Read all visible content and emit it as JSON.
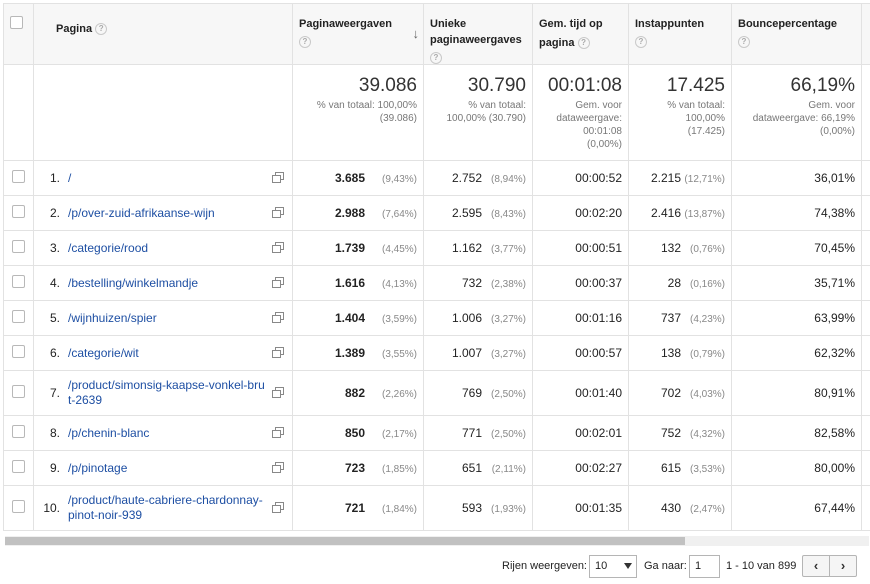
{
  "headers": {
    "page": "Pagina",
    "pageviews": "Paginaweergaven",
    "unique_pageviews_1": "Unieke",
    "unique_pageviews_2": "paginaweergaves",
    "avg_time_1": "Gem. tijd op",
    "avg_time_2": "pagina",
    "entrances": "Instappunten",
    "bounce": "Bouncepercentage",
    "help_glyph": "?"
  },
  "totals": {
    "pageviews": "39.086",
    "pageviews_sub1": "% van totaal: 100,00%",
    "pageviews_sub2": "(39.086)",
    "unique": "30.790",
    "unique_sub1": "% van totaal:",
    "unique_sub2": "100,00% (30.790)",
    "time": "00:01:08",
    "time_sub1": "Gem. voor",
    "time_sub2": "dataweergave:",
    "time_sub3": "00:01:08",
    "time_sub4": "(0,00%)",
    "entrances": "17.425",
    "entrances_sub1": "% van totaal:",
    "entrances_sub2": "100,00%",
    "entrances_sub3": "(17.425)",
    "bounce": "66,19%",
    "bounce_sub1": "Gem. voor",
    "bounce_sub2": "dataweergave: 66,19%",
    "bounce_sub3": "(0,00%)"
  },
  "rows": [
    {
      "num": "1.",
      "page": "/",
      "pv": "3.685",
      "pv_pct": "(9,43%)",
      "upv": "2.752",
      "upv_pct": "(8,94%)",
      "time": "00:00:52",
      "entr": "2.215",
      "entr_pct": "(12,71%)",
      "bounce": "36,01%"
    },
    {
      "num": "2.",
      "page": "/p/over-zuid-afrikaanse-wijn",
      "pv": "2.988",
      "pv_pct": "(7,64%)",
      "upv": "2.595",
      "upv_pct": "(8,43%)",
      "time": "00:02:20",
      "entr": "2.416",
      "entr_pct": "(13,87%)",
      "bounce": "74,38%"
    },
    {
      "num": "3.",
      "page": "/categorie/rood",
      "pv": "1.739",
      "pv_pct": "(4,45%)",
      "upv": "1.162",
      "upv_pct": "(3,77%)",
      "time": "00:00:51",
      "entr": "132",
      "entr_pct": "(0,76%)",
      "bounce": "70,45%"
    },
    {
      "num": "4.",
      "page": "/bestelling/winkelmandje",
      "pv": "1.616",
      "pv_pct": "(4,13%)",
      "upv": "732",
      "upv_pct": "(2,38%)",
      "time": "00:00:37",
      "entr": "28",
      "entr_pct": "(0,16%)",
      "bounce": "35,71%"
    },
    {
      "num": "5.",
      "page": "/wijnhuizen/spier",
      "pv": "1.404",
      "pv_pct": "(3,59%)",
      "upv": "1.006",
      "upv_pct": "(3,27%)",
      "time": "00:01:16",
      "entr": "737",
      "entr_pct": "(4,23%)",
      "bounce": "63,99%"
    },
    {
      "num": "6.",
      "page": "/categorie/wit",
      "pv": "1.389",
      "pv_pct": "(3,55%)",
      "upv": "1.007",
      "upv_pct": "(3,27%)",
      "time": "00:00:57",
      "entr": "138",
      "entr_pct": "(0,79%)",
      "bounce": "62,32%"
    },
    {
      "num": "7.",
      "page": "/product/simonsig-kaapse-vonkel-brut-2639",
      "pv": "882",
      "pv_pct": "(2,26%)",
      "upv": "769",
      "upv_pct": "(2,50%)",
      "time": "00:01:40",
      "entr": "702",
      "entr_pct": "(4,03%)",
      "bounce": "80,91%"
    },
    {
      "num": "8.",
      "page": "/p/chenin-blanc",
      "pv": "850",
      "pv_pct": "(2,17%)",
      "upv": "771",
      "upv_pct": "(2,50%)",
      "time": "00:02:01",
      "entr": "752",
      "entr_pct": "(4,32%)",
      "bounce": "82,58%"
    },
    {
      "num": "9.",
      "page": "/p/pinotage",
      "pv": "723",
      "pv_pct": "(1,85%)",
      "upv": "651",
      "upv_pct": "(2,11%)",
      "time": "00:02:27",
      "entr": "615",
      "entr_pct": "(3,53%)",
      "bounce": "80,00%"
    },
    {
      "num": "10.",
      "page": "/product/haute-cabriere-chardonnay-pinot-noir-939",
      "pv": "721",
      "pv_pct": "(1,84%)",
      "upv": "593",
      "upv_pct": "(1,93%)",
      "time": "00:01:35",
      "entr": "430",
      "entr_pct": "(2,47%)",
      "bounce": "67,44%"
    }
  ],
  "pager": {
    "rows_label": "Rijen weergeven:",
    "rows_value": "10",
    "goto_label": "Ga naar:",
    "goto_value": "1",
    "range": "1 - 10 van 899",
    "prev": "‹",
    "next": "›"
  },
  "colors": {
    "link": "#1e4fa3",
    "header_bg": "#f7f7f7",
    "border": "#e2e2e2"
  }
}
